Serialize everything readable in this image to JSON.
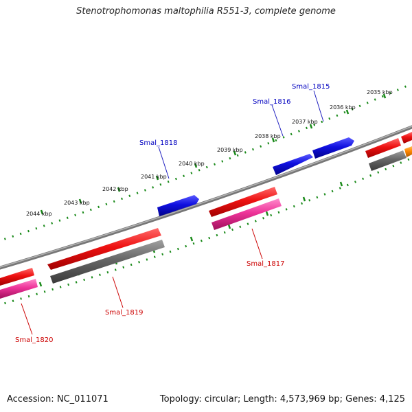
{
  "title": "Stenotrophomonas maltophilia R551-3, complete genome",
  "footer": {
    "accession_label": "Accession:",
    "accession": "NC_011071",
    "stats": "Topology: circular; Length: 4,573,969 bp; Genes: 4,125"
  },
  "colors": {
    "backbone": "#8a8a8a",
    "ticks": "#1a8a1a",
    "forward_cds": "#1010e0",
    "reverse_cds": "#ee1111",
    "rna_or_pseudo_pink": "#ee3399",
    "gray_feature": "#666666",
    "orange_feature": "#ff8800",
    "forward_label": "#0000c0",
    "reverse_label": "#cc0000"
  },
  "kbp_labels": [
    "2035 kbp",
    "2036 kbp",
    "2037 kbp",
    "2038 kbp",
    "2039 kbp",
    "2040 kbp",
    "2041 kbp",
    "2042 kbp",
    "2043 kbp",
    "2044 kbp"
  ],
  "genes": [
    {
      "label": "Smal_1815",
      "strand": "forward",
      "color": "blue"
    },
    {
      "label": "Smal_1816",
      "strand": "forward",
      "color": "blue"
    },
    {
      "label": "Smal_1817",
      "strand": "reverse",
      "color": "red"
    },
    {
      "label": "Smal_1818",
      "strand": "forward",
      "color": "blue"
    },
    {
      "label": "Smal_1819",
      "strand": "reverse",
      "color": "red"
    },
    {
      "label": "Smal_1820",
      "strand": "reverse",
      "color": "red"
    }
  ]
}
